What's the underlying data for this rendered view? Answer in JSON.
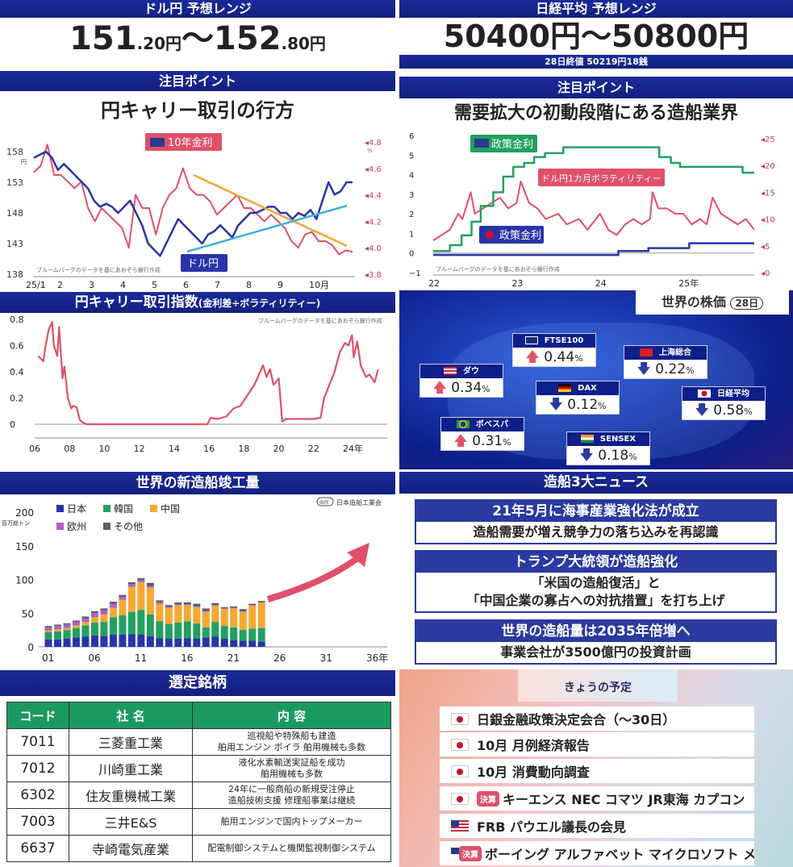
{
  "usdjpy_panel": {
    "header": "ドル円 予想レンジ",
    "range_low": "151",
    "range_low_dec": ".20円",
    "sep": "～",
    "range_high": "152",
    "range_high_dec": ".80円",
    "point_header": "注目ポイント",
    "point_title": "円キャリー取引の行方"
  },
  "nikkei_panel": {
    "header": "日経平均 予想レンジ",
    "range": "50400円～50800円",
    "close_note": "28日終値 50219円18銭",
    "point_header": "注目ポイント",
    "point_title": "需要拡大の初動段階にある造船業界"
  },
  "chart_data": [
    {
      "id": "usdjpy_vs_us10y",
      "type": "line",
      "title": "",
      "source_note": "ブルームバーグのデータを基にあおぞら銀行作成",
      "x_ticks": [
        "25/1",
        "2",
        "3",
        "4",
        "5",
        "6",
        "7",
        "8",
        "9",
        "10月"
      ],
      "y_left": {
        "label": "円",
        "ticks": [
          "158",
          "153",
          "148",
          "143",
          "138"
        ],
        "range": [
          138,
          160
        ]
      },
      "y_right": {
        "label": "%",
        "ticks": [
          "4.8",
          "4.6",
          "4.4",
          "4.2",
          "4.0",
          "3.8"
        ],
        "range": [
          3.8,
          4.8
        ]
      },
      "series": [
        {
          "name": "ドル円",
          "axis": "left",
          "color": "#2a34a8",
          "values": [
            157,
            157.5,
            158,
            157,
            155,
            156,
            155,
            154,
            153,
            152,
            150,
            149,
            149.5,
            149,
            148,
            149,
            150,
            148,
            146,
            143,
            142,
            141,
            143,
            145,
            147,
            146,
            145,
            144,
            143,
            144.5,
            145,
            146,
            145,
            144,
            146,
            147,
            148,
            148,
            148.5,
            149,
            149,
            148,
            148,
            147,
            148,
            147.5,
            148.5,
            147,
            150,
            153,
            151,
            151.5,
            153,
            153
          ]
        },
        {
          "name": "10年金利",
          "axis": "right",
          "color": "#e0506a",
          "values": [
            4.57,
            4.62,
            4.78,
            4.55,
            4.55,
            4.5,
            4.45,
            4.5,
            4.3,
            4.2,
            4.3,
            4.25,
            4.2,
            4.15,
            4.0,
            4.4,
            4.3,
            4.3,
            4.1,
            4.3,
            4.4,
            4.45,
            4.6,
            4.45,
            4.4,
            4.4,
            4.35,
            4.25,
            4.3,
            4.35,
            4.4,
            4.3,
            4.3,
            4.25,
            4.2,
            4.25,
            4.2,
            4.15,
            4.05,
            4.0,
            4.1,
            4.12,
            4.05,
            4.05,
            4.02,
            3.95,
            3.98,
            3.97
          ]
        }
      ],
      "trend_lines": [
        "下落トレンド(10年金利)",
        "上昇トレンド(ドル円)"
      ],
      "labels": {
        "us10y": "10年金利",
        "usdjpy": "ドル円"
      }
    },
    {
      "id": "policy_rates_vol",
      "type": "line",
      "source_note": "ブルームバーグのデータを基にあおぞら銀行作成",
      "x_ticks": [
        "22",
        "23",
        "24",
        "25年"
      ],
      "x_range": [
        2022,
        2025.85
      ],
      "y_left": {
        "label": "%",
        "ticks": [
          "6",
          "5",
          "4",
          "3",
          "2",
          "1",
          "0",
          "−1"
        ],
        "range": [
          -1,
          6
        ]
      },
      "y_right": {
        "label": "%",
        "ticks": [
          "25",
          "20",
          "15",
          "10",
          "5",
          "0"
        ],
        "range": [
          0,
          25
        ]
      },
      "series": [
        {
          "name": "米国 政策金利",
          "axis": "left",
          "color": "#22a060",
          "step": true,
          "x": [
            2022,
            2022.2,
            2022.34,
            2022.46,
            2022.57,
            2022.72,
            2022.84,
            2022.96,
            2023.09,
            2023.21,
            2023.34,
            2023.56,
            2024.71,
            2024.85,
            2024.96,
            2025.71,
            2025.85
          ],
          "values": [
            0.1,
            0.4,
            0.9,
            1.6,
            2.4,
            3.1,
            3.9,
            4.4,
            4.6,
            4.9,
            5.1,
            5.4,
            4.9,
            4.6,
            4.4,
            4.1,
            4.1
          ]
        },
        {
          "name": "日本 政策金利",
          "axis": "left",
          "color": "#2a34a8",
          "step": true,
          "x": [
            2022,
            2024.22,
            2024.58,
            2025.07,
            2025.85
          ],
          "values": [
            -0.1,
            0.1,
            0.25,
            0.5,
            0.5
          ]
        },
        {
          "name": "ドル円1カ月ボラティリティー",
          "axis": "right",
          "color": "#e0506a",
          "x": [
            2022,
            2022.1,
            2022.2,
            2022.3,
            2022.35,
            2022.45,
            2022.5,
            2022.6,
            2022.7,
            2022.8,
            2022.9,
            2023,
            2023.05,
            2023.15,
            2023.25,
            2023.35,
            2023.5,
            2023.6,
            2023.75,
            2023.85,
            2023.95,
            2024,
            2024.1,
            2024.2,
            2024.3,
            2024.4,
            2024.5,
            2024.6,
            2024.63,
            2024.7,
            2024.8,
            2024.9,
            2025,
            2025.1,
            2025.2,
            2025.28,
            2025.35,
            2025.45,
            2025.55,
            2025.65,
            2025.75,
            2025.85
          ],
          "values": [
            6,
            7,
            8,
            11,
            10,
            15,
            11,
            12,
            13,
            14,
            12,
            13,
            17,
            13,
            12,
            10,
            11,
            9,
            10,
            8,
            10,
            11,
            8,
            7,
            9,
            10,
            9,
            10,
            15,
            12,
            12,
            11,
            11,
            9,
            10,
            9,
            14,
            11,
            10,
            9,
            10,
            8
          ]
        }
      ],
      "labels": {
        "us": "政策金利",
        "jp": "政策金利",
        "vol": "ドル円1カ月ボラティリティー"
      }
    },
    {
      "id": "carry_index",
      "type": "line",
      "title": "円キャリー取引指数",
      "title_sub": "(金利差÷ボラティリティー)",
      "source_note": "ブルームバーグのデータを基にあおぞら銀行作成",
      "x_ticks": [
        "06",
        "08",
        "10",
        "12",
        "14",
        "16",
        "18",
        "20",
        "22",
        "24年"
      ],
      "x_range": [
        2006,
        2025.8
      ],
      "y_ticks": [
        "0.8",
        "0.6",
        "0.4",
        "0.2",
        "0"
      ],
      "y_range": [
        -0.1,
        0.8
      ],
      "series": [
        {
          "name": "円キャリー取引指数",
          "color": "#e0506a",
          "x": [
            2006.2,
            2006.5,
            2006.6,
            2006.8,
            2007,
            2007.1,
            2007.3,
            2007.4,
            2007.6,
            2007.7,
            2007.8,
            2007.9,
            2008.1,
            2008.2,
            2008.4,
            2008.6,
            2008.8,
            2009,
            2012,
            2015.9,
            2016.1,
            2016.5,
            2017,
            2017.4,
            2017.8,
            2018.2,
            2018.6,
            2019.1,
            2019.3,
            2019.5,
            2019.7,
            2020,
            2020.2,
            2020.4,
            2021,
            2022,
            2022.4,
            2022.6,
            2022.9,
            2023.2,
            2023.5,
            2023.8,
            2024,
            2024.2,
            2024.3,
            2024.5,
            2024.7,
            2025,
            2025.2,
            2025.5,
            2025.7
          ],
          "values": [
            0.52,
            0.48,
            0.58,
            0.72,
            0.78,
            0.6,
            0.52,
            0.74,
            0.35,
            0.44,
            0.33,
            0.2,
            0.12,
            0.14,
            0.13,
            0.03,
            0.01,
            0,
            0,
            0,
            0.05,
            0.04,
            0.06,
            0.12,
            0.14,
            0.22,
            0.3,
            0.45,
            0.36,
            0.42,
            0.3,
            0.35,
            0.02,
            0.04,
            0.04,
            0.04,
            0.05,
            0.2,
            0.3,
            0.4,
            0.55,
            0.62,
            0.6,
            0.68,
            0.51,
            0.63,
            0.45,
            0.36,
            0.38,
            0.32,
            0.42
          ]
        }
      ]
    },
    {
      "id": "shipbuilding",
      "type": "bar",
      "stacked": true,
      "title": "世界の新造船竣工量",
      "source_note": "日本造船工業会",
      "source_tag": "出所",
      "ylabel": "百万総トン",
      "y_ticks": [
        "200",
        "150",
        "100",
        "50",
        "0"
      ],
      "ylim": [
        0,
        200
      ],
      "x_ticks": [
        "01",
        "06",
        "11",
        "16",
        "21",
        "26",
        "31",
        "36年"
      ],
      "x_range": [
        2000.5,
        2038
      ],
      "categories": [
        2001,
        2002,
        2003,
        2004,
        2005,
        2006,
        2007,
        2008,
        2009,
        2010,
        2011,
        2012,
        2013,
        2014,
        2015,
        2016,
        2017,
        2018,
        2019,
        2020,
        2021,
        2022,
        2023,
        2024
      ],
      "series": [
        {
          "name": "日本",
          "color": "#2a34a8",
          "values": [
            11,
            11,
            12,
            14,
            15,
            17,
            16,
            18,
            18,
            19,
            18,
            16,
            13,
            12,
            12,
            13,
            12,
            14,
            15,
            12,
            10,
            9,
            9,
            8
          ]
        },
        {
          "name": "韓国",
          "color": "#22a060",
          "values": [
            11,
            12,
            13,
            14,
            17,
            19,
            21,
            26,
            29,
            33,
            37,
            32,
            25,
            22,
            24,
            25,
            23,
            15,
            22,
            19,
            19,
            16,
            18,
            20
          ]
        },
        {
          "name": "中国",
          "color": "#f5a833",
          "values": [
            2,
            3,
            3,
            4,
            5,
            8,
            11,
            14,
            23,
            37,
            41,
            40,
            26,
            24,
            26,
            24,
            24,
            23,
            24,
            25,
            28,
            27,
            34,
            38
          ]
        },
        {
          "name": "欧州",
          "color": "#b060c8",
          "values": [
            5,
            5,
            5,
            5,
            5,
            6,
            6,
            6,
            4,
            4,
            3,
            2,
            2,
            1,
            1,
            1,
            1,
            1,
            1,
            1,
            1,
            1,
            1,
            0
          ]
        },
        {
          "name": "その他",
          "color": "#5a5e6e",
          "values": [
            2,
            2,
            2,
            2,
            3,
            3,
            3,
            3,
            3,
            3,
            3,
            5,
            3,
            3,
            3,
            3,
            4,
            4,
            3,
            2,
            2,
            3,
            2,
            2
          ]
        }
      ],
      "annotation": "upward-arrow"
    }
  ],
  "world_stocks": {
    "title": "世界の株価",
    "date_badge": "28日",
    "items": [
      {
        "name": "FTSE100",
        "flag": "uk",
        "dir": "up",
        "value": "0.44",
        "unit": "%"
      },
      {
        "name": "ダウ",
        "flag": "us",
        "dir": "up",
        "value": "0.34",
        "unit": "%"
      },
      {
        "name": "上海総合",
        "flag": "cn",
        "dir": "down",
        "value": "0.22",
        "unit": "%"
      },
      {
        "name": "DAX",
        "flag": "de",
        "dir": "down",
        "value": "0.12",
        "unit": "%"
      },
      {
        "name": "日経平均",
        "flag": "jp",
        "dir": "down",
        "value": "0.58",
        "unit": "%"
      },
      {
        "name": "ボベスパ",
        "flag": "br",
        "dir": "up",
        "value": "0.31",
        "unit": "%"
      },
      {
        "name": "SENSEX",
        "flag": "in",
        "dir": "down",
        "value": "0.18",
        "unit": "%"
      }
    ]
  },
  "news": {
    "title": "造船3大ニュース",
    "items": [
      {
        "head": "21年5月に海事産業強化法が成立",
        "body": [
          "造船需要が増え競争力の落ち込みを再認識"
        ]
      },
      {
        "head": "トランプ大統領が造船強化",
        "body": [
          "「米国の造船復活」と",
          "「中国企業の寡占への対抗措置」を打ち上げ"
        ]
      },
      {
        "head": "世界の造船量は2035年倍増へ",
        "body": [
          "事業会社が3500億円の投資計画"
        ]
      }
    ]
  },
  "stocks_table": {
    "title": "選定銘柄",
    "headers": [
      "コード",
      "社 名",
      "内 容"
    ],
    "rows": [
      {
        "code": "7011",
        "name": "三菱重工業",
        "content": [
          "巡視船や特殊船も建造",
          "舶用エンジン ボイラ 舶用機械も多数"
        ]
      },
      {
        "code": "7012",
        "name": "川崎重工業",
        "content": [
          "液化水素輸送実証船を成功",
          "舶用機械も多数"
        ]
      },
      {
        "code": "6302",
        "name": "住友重機械工業",
        "content": [
          "24年に一般商船の新規受注停止",
          "造船技術支援 修理船事業は継続"
        ]
      },
      {
        "code": "7003",
        "name": "三井E&S",
        "content": [
          "舶用エンジンで国内トップメーカー"
        ]
      },
      {
        "code": "6637",
        "name": "寺崎電気産業",
        "content": [
          "配電制御システムと機関監視制御システム"
        ]
      }
    ]
  },
  "schedule": {
    "title": "きょうの予定",
    "items": [
      {
        "flag": "jp",
        "tag": "",
        "text": "日銀金融政策決定会合（～30日）"
      },
      {
        "flag": "jp",
        "tag": "",
        "text": "10月 月例経済報告"
      },
      {
        "flag": "jp",
        "tag": "",
        "text": "10月 消費動向調査"
      },
      {
        "flag": "jp",
        "tag": "決算",
        "text": "キーエンス NEC コマツ JR東海 カプコン"
      },
      {
        "flag": "us",
        "tag": "",
        "text": "FRB パウエル議長の会見"
      },
      {
        "flag": "us",
        "tag": "決算",
        "text": "ボーイング アルファベット マイクロソフト メタ"
      }
    ]
  }
}
